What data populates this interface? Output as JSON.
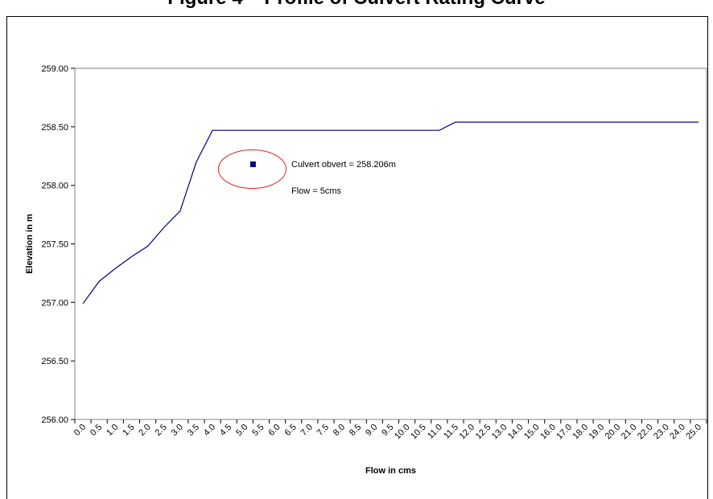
{
  "chart_data": {
    "type": "line",
    "title": "Figure 4 – Profile of Culvert Rating Curve",
    "xlabel": "Flow in cms",
    "ylabel": "Elevation in m",
    "ylim": [
      256.0,
      259.0
    ],
    "y_ticks": [
      "256.00",
      "256.50",
      "257.00",
      "257.50",
      "258.00",
      "258.50",
      "259.00"
    ],
    "x_ticks": [
      "0.0",
      "0.5",
      "1.0",
      "1.5",
      "2.0",
      "2.5",
      "3.0",
      "3.5",
      "4.0",
      "4.5",
      "5.0",
      "5.5",
      "6.0",
      "6.5",
      "7.0",
      "7.5",
      "8.0",
      "8.5",
      "9.0",
      "9.5",
      "10.0",
      "10.5",
      "11.0",
      "11.5",
      "12.0",
      "12.5",
      "13.0",
      "14.0",
      "15.0",
      "16.0",
      "17.0",
      "18.0",
      "19.0",
      "20.0",
      "21.0",
      "22.0",
      "23.0",
      "24.0",
      "25.0"
    ],
    "grid": false,
    "series": [
      {
        "values": [
          256.99,
          257.18,
          257.29,
          257.39,
          257.48,
          257.64,
          257.78,
          258.2,
          258.47,
          258.47,
          258.47,
          258.47,
          258.47,
          258.47,
          258.47,
          258.47,
          258.47,
          258.47,
          258.47,
          258.47,
          258.47,
          258.47,
          258.47,
          258.54,
          258.54,
          258.54,
          258.54,
          258.54,
          258.54,
          258.54,
          258.54,
          258.54,
          258.54,
          258.54,
          258.54,
          258.54,
          258.54,
          258.54,
          258.54
        ],
        "color": "#000080"
      }
    ],
    "marker": {
      "category_index": 10.5,
      "value": 258.18,
      "color": "#000080"
    },
    "annotations": [
      "Culvert obvert = 258.206m",
      "Flow = 5cms"
    ],
    "annotation_circle_color": "#e02020"
  }
}
